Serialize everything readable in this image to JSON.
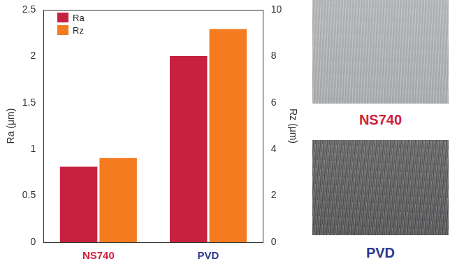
{
  "chart_data": {
    "type": "bar",
    "categories": [
      "NS740",
      "PVD"
    ],
    "series": [
      {
        "name": "Ra",
        "color": "#c8213f",
        "values": [
          0.82,
          2.01
        ]
      },
      {
        "name": "Rz",
        "color": "#f47b20",
        "values": [
          3.65,
          9.2
        ],
        "axis": "y2"
      }
    ],
    "y_label": "Ra (μm)",
    "y2_label": "Rz (μm)",
    "ylim": [
      0,
      2.5
    ],
    "yticks": [
      0,
      0.5,
      1,
      1.5,
      2,
      2.5
    ],
    "y2lim": [
      0,
      10
    ],
    "y2ticks": [
      0,
      2,
      4,
      6,
      8,
      10
    ],
    "grid": false,
    "legend": "upper left"
  },
  "images": {
    "captions": [
      "NS740",
      "PVD"
    ]
  }
}
